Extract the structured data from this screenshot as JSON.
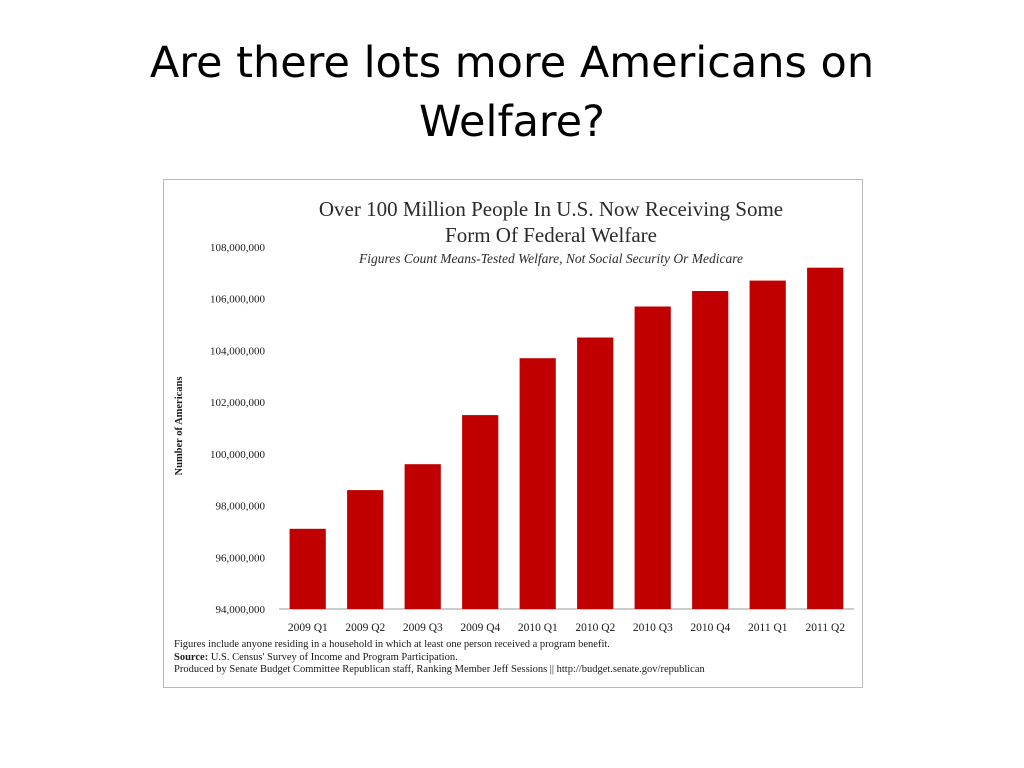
{
  "slide": {
    "title_line1": "Are there lots more Americans on",
    "title_line2": "Welfare?"
  },
  "chart_data": {
    "type": "bar",
    "title_line1": "Over 100 Million People In U.S. Now Receiving Some",
    "title_line2": "Form Of Federal Welfare",
    "subtitle": "Figures Count Means-Tested Welfare, Not Social Security Or Medicare",
    "xlabel": "",
    "ylabel": "Number of Americans",
    "ylim": [
      94000000,
      108000000
    ],
    "yticks": [
      94000000,
      96000000,
      98000000,
      100000000,
      102000000,
      104000000,
      106000000,
      108000000
    ],
    "ytick_labels": [
      "94,000,000",
      "96,000,000",
      "98,000,000",
      "100,000,000",
      "102,000,000",
      "104,000,000",
      "106,000,000",
      "108,000,000"
    ],
    "categories": [
      "2009 Q1",
      "2009 Q2",
      "2009 Q3",
      "2009 Q4",
      "2010 Q1",
      "2010 Q2",
      "2010 Q3",
      "2010 Q4",
      "2011 Q1",
      "2011 Q2"
    ],
    "values": [
      97100000,
      98600000,
      99600000,
      101500000,
      103700000,
      104500000,
      105700000,
      106300000,
      106700000,
      107200000
    ],
    "bar_color": "#c00000",
    "grid": false,
    "legend": "none"
  },
  "footnotes": {
    "line1": "Figures include anyone residing in a household in which at least one person received a program benefit.",
    "source_label": "Source:",
    "source_text": " U.S. Census' Survey of Income and Program Participation.",
    "line3": "Produced by Senate Budget Committee Republican staff, Ranking Member Jeff Sessions || http://budget.senate.gov/republican"
  }
}
